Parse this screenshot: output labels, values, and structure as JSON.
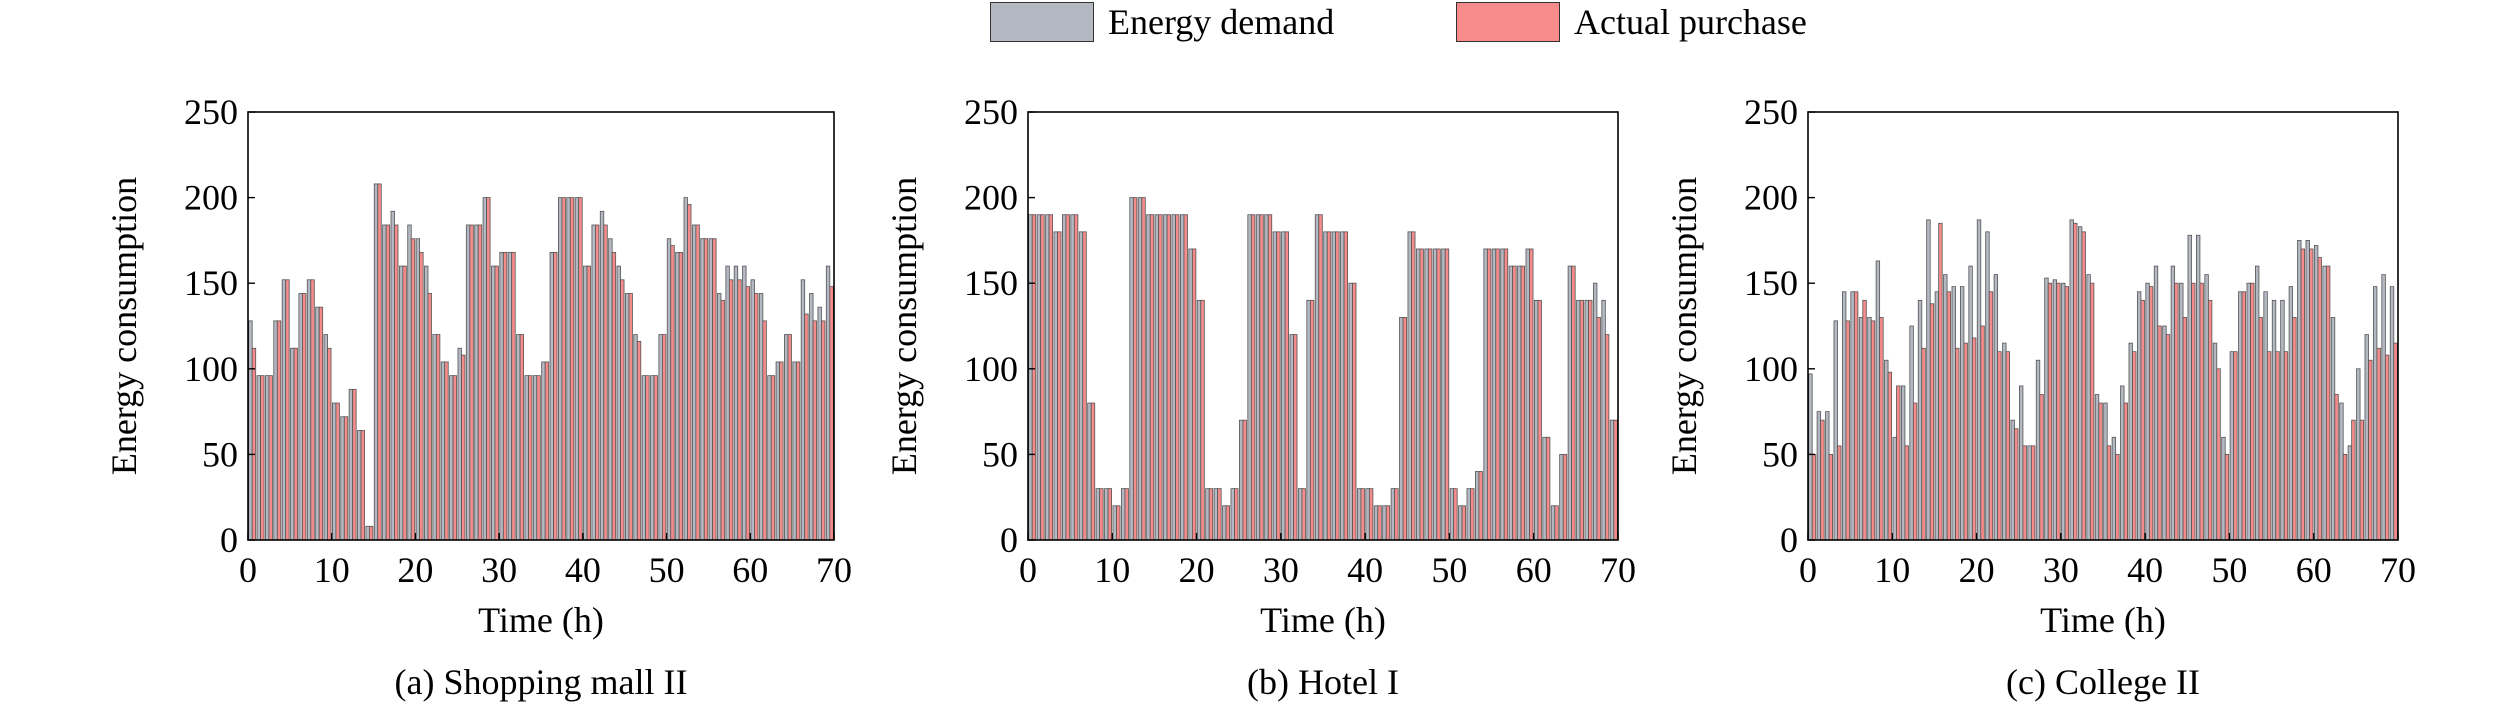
{
  "legend": [
    {
      "label": "Energy demand",
      "color": "#b3b8c2"
    },
    {
      "label": "Actual purchase",
      "color": "#f58b8b"
    }
  ],
  "chart_data": [
    {
      "type": "bar",
      "caption": "(a) Shopping mall II",
      "xlabel": "Time (h)",
      "ylabel": "Energy consumption",
      "xlim": [
        0,
        70
      ],
      "ylim": [
        0,
        250
      ],
      "xticks": [
        0,
        10,
        20,
        30,
        40,
        50,
        60,
        70
      ],
      "yticks": [
        0,
        50,
        100,
        150,
        200,
        250
      ],
      "x": [
        0,
        1,
        2,
        3,
        4,
        5,
        6,
        7,
        8,
        9,
        10,
        11,
        12,
        13,
        14,
        15,
        16,
        17,
        18,
        19,
        20,
        21,
        22,
        23,
        24,
        25,
        26,
        27,
        28,
        29,
        30,
        31,
        32,
        33,
        34,
        35,
        36,
        37,
        38,
        39,
        40,
        41,
        42,
        43,
        44,
        45,
        46,
        47,
        48,
        49,
        50,
        51,
        52,
        53,
        54,
        55,
        56,
        57,
        58,
        59,
        60,
        61,
        62,
        63,
        64,
        65,
        66,
        67,
        68,
        69
      ],
      "series": [
        {
          "name": "Energy demand",
          "values": [
            128,
            96,
            96,
            128,
            152,
            112,
            144,
            152,
            136,
            120,
            80,
            72,
            88,
            64,
            8,
            208,
            184,
            192,
            160,
            184,
            176,
            160,
            120,
            104,
            96,
            112,
            184,
            184,
            200,
            160,
            168,
            168,
            120,
            96,
            96,
            104,
            168,
            200,
            200,
            200,
            160,
            184,
            192,
            176,
            160,
            144,
            120,
            96,
            96,
            120,
            176,
            168,
            200,
            184,
            176,
            176,
            144,
            160,
            160,
            160,
            152,
            144,
            96,
            104,
            120,
            104,
            152,
            144,
            136,
            160
          ]
        },
        {
          "name": "Actual purchase",
          "values": [
            112,
            96,
            96,
            128,
            152,
            112,
            144,
            152,
            136,
            112,
            80,
            72,
            88,
            64,
            8,
            208,
            184,
            184,
            160,
            176,
            168,
            144,
            120,
            104,
            96,
            108,
            184,
            184,
            200,
            160,
            168,
            168,
            120,
            96,
            96,
            104,
            168,
            200,
            200,
            200,
            160,
            184,
            184,
            168,
            152,
            144,
            116,
            96,
            96,
            120,
            172,
            168,
            196,
            184,
            176,
            176,
            140,
            152,
            152,
            148,
            144,
            128,
            96,
            104,
            120,
            104,
            132,
            128,
            128,
            148
          ]
        }
      ]
    },
    {
      "type": "bar",
      "caption": "(b) Hotel I",
      "xlabel": "Time (h)",
      "ylabel": "Energy consumption",
      "xlim": [
        0,
        70
      ],
      "ylim": [
        0,
        250
      ],
      "xticks": [
        0,
        10,
        20,
        30,
        40,
        50,
        60,
        70
      ],
      "yticks": [
        0,
        50,
        100,
        150,
        200,
        250
      ],
      "x": [
        0,
        1,
        2,
        3,
        4,
        5,
        6,
        7,
        8,
        9,
        10,
        11,
        12,
        13,
        14,
        15,
        16,
        17,
        18,
        19,
        20,
        21,
        22,
        23,
        24,
        25,
        26,
        27,
        28,
        29,
        30,
        31,
        32,
        33,
        34,
        35,
        36,
        37,
        38,
        39,
        40,
        41,
        42,
        43,
        44,
        45,
        46,
        47,
        48,
        49,
        50,
        51,
        52,
        53,
        54,
        55,
        56,
        57,
        58,
        59,
        60,
        61,
        62,
        63,
        64,
        65,
        66,
        67,
        68,
        69
      ],
      "series": [
        {
          "name": "Energy demand",
          "values": [
            190,
            190,
            190,
            180,
            190,
            190,
            180,
            80,
            30,
            30,
            20,
            30,
            200,
            200,
            190,
            190,
            190,
            190,
            190,
            170,
            140,
            30,
            30,
            20,
            30,
            70,
            190,
            190,
            190,
            180,
            180,
            120,
            30,
            140,
            190,
            180,
            180,
            180,
            150,
            30,
            30,
            20,
            20,
            30,
            130,
            180,
            170,
            170,
            170,
            170,
            30,
            20,
            30,
            40,
            170,
            170,
            170,
            160,
            160,
            170,
            140,
            60,
            20,
            50,
            160,
            140,
            140,
            150,
            140,
            70
          ]
        },
        {
          "name": "Actual purchase",
          "values": [
            190,
            190,
            190,
            180,
            190,
            190,
            180,
            80,
            30,
            30,
            20,
            30,
            200,
            200,
            190,
            190,
            190,
            190,
            190,
            170,
            140,
            30,
            30,
            20,
            30,
            70,
            190,
            190,
            190,
            180,
            180,
            120,
            30,
            140,
            190,
            180,
            180,
            180,
            150,
            30,
            30,
            20,
            20,
            30,
            130,
            180,
            170,
            170,
            170,
            170,
            30,
            20,
            30,
            40,
            170,
            170,
            170,
            160,
            160,
            170,
            140,
            60,
            20,
            50,
            160,
            140,
            140,
            130,
            120,
            70
          ]
        }
      ]
    },
    {
      "type": "bar",
      "caption": "(c) College II",
      "xlabel": "Time (h)",
      "ylabel": "Energy consumption",
      "xlim": [
        0,
        70
      ],
      "ylim": [
        0,
        250
      ],
      "xticks": [
        0,
        10,
        20,
        30,
        40,
        50,
        60,
        70
      ],
      "yticks": [
        0,
        50,
        100,
        150,
        200,
        250
      ],
      "x": [
        0,
        1,
        2,
        3,
        4,
        5,
        6,
        7,
        8,
        9,
        10,
        11,
        12,
        13,
        14,
        15,
        16,
        17,
        18,
        19,
        20,
        21,
        22,
        23,
        24,
        25,
        26,
        27,
        28,
        29,
        30,
        31,
        32,
        33,
        34,
        35,
        36,
        37,
        38,
        39,
        40,
        41,
        42,
        43,
        44,
        45,
        46,
        47,
        48,
        49,
        50,
        51,
        52,
        53,
        54,
        55,
        56,
        57,
        58,
        59,
        60,
        61,
        62,
        63,
        64,
        65,
        66,
        67,
        68,
        69
      ],
      "series": [
        {
          "name": "Energy demand",
          "values": [
            97,
            75,
            75,
            128,
            145,
            145,
            130,
            130,
            163,
            105,
            60,
            90,
            125,
            140,
            187,
            145,
            155,
            148,
            148,
            160,
            187,
            180,
            155,
            115,
            70,
            90,
            55,
            105,
            153,
            152,
            150,
            187,
            183,
            155,
            85,
            80,
            60,
            90,
            115,
            145,
            150,
            160,
            125,
            160,
            150,
            178,
            178,
            155,
            115,
            60,
            110,
            145,
            150,
            160,
            145,
            140,
            140,
            148,
            175,
            175,
            172,
            160,
            130,
            80,
            55,
            100,
            120,
            148,
            155,
            148
          ]
        },
        {
          "name": "Actual purchase",
          "values": [
            50,
            70,
            50,
            55,
            128,
            145,
            140,
            128,
            130,
            98,
            90,
            55,
            80,
            112,
            138,
            185,
            145,
            112,
            115,
            118,
            125,
            145,
            110,
            110,
            65,
            55,
            55,
            85,
            150,
            150,
            148,
            185,
            180,
            150,
            80,
            55,
            50,
            80,
            110,
            140,
            148,
            125,
            120,
            150,
            130,
            150,
            150,
            140,
            100,
            50,
            110,
            145,
            150,
            130,
            110,
            110,
            110,
            130,
            170,
            170,
            165,
            160,
            85,
            50,
            70,
            70,
            105,
            112,
            108,
            115
          ]
        }
      ]
    }
  ]
}
